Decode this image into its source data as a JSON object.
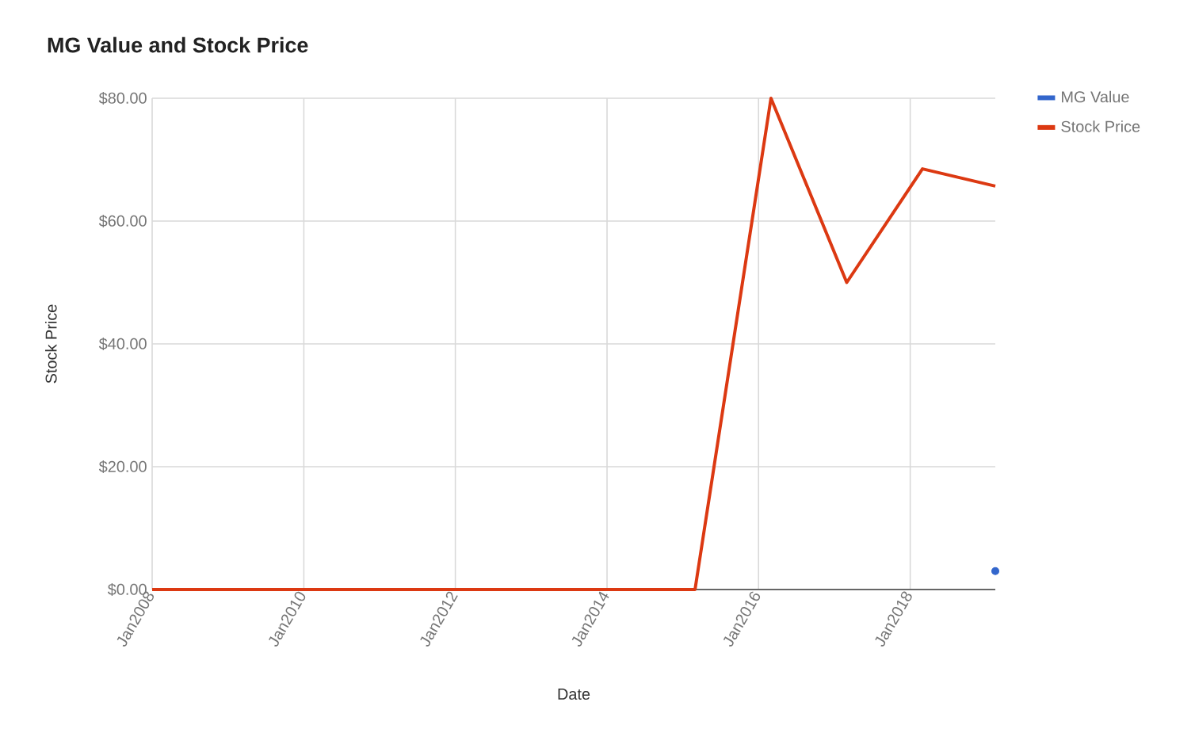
{
  "chart_data": {
    "type": "line",
    "title": "MG Value and Stock Price",
    "xlabel": "Date",
    "ylabel": "Stock Price",
    "xlim": [
      "2008-01-01",
      "2019-02-15"
    ],
    "xticks": [
      {
        "value": "2008-01",
        "label": "Jan2008"
      },
      {
        "value": "2010-01",
        "label": "Jan2010"
      },
      {
        "value": "2012-01",
        "label": "Jan2012"
      },
      {
        "value": "2014-01",
        "label": "Jan2014"
      },
      {
        "value": "2016-01",
        "label": "Jan2016"
      },
      {
        "value": "2018-01",
        "label": "Jan2018"
      }
    ],
    "ylim": [
      0,
      80
    ],
    "yticks": [
      {
        "value": 0,
        "label": "$0.00"
      },
      {
        "value": 20,
        "label": "$20.00"
      },
      {
        "value": 40,
        "label": "$40.00"
      },
      {
        "value": 60,
        "label": "$60.00"
      },
      {
        "value": 80,
        "label": "$80.00"
      }
    ],
    "series": [
      {
        "name": "MG Value",
        "type": "scatter",
        "color": "#3366cc",
        "x": [
          "2019-02-15"
        ],
        "values": [
          3
        ]
      },
      {
        "name": "Stock Price",
        "color": "#dc3912",
        "x": [
          "2008-01-01",
          "2015-03-01",
          "2016-03-01",
          "2017-03-01",
          "2018-03-01",
          "2019-02-15"
        ],
        "values": [
          0,
          0,
          80,
          50,
          68.5,
          65.7
        ]
      }
    ],
    "grid": true,
    "legend": "top right"
  }
}
